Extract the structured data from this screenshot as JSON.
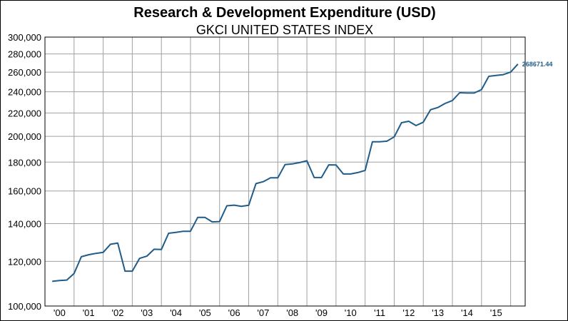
{
  "chart_data": {
    "type": "line",
    "title": "Research & Development Expenditure (USD)",
    "subtitle": "GKCI UNITED STATES INDEX",
    "y_scale": "log",
    "ylim": [
      100000,
      300000
    ],
    "y_ticks": [
      100000,
      120000,
      140000,
      160000,
      180000,
      200000,
      220000,
      240000,
      260000,
      280000,
      300000
    ],
    "y_tick_labels": [
      "100,000",
      "120,000",
      "140,000",
      "160,000",
      "180,000",
      "200,000",
      "220,000",
      "240,000",
      "260,000",
      "280,000",
      "300,000"
    ],
    "x_range": [
      1999.75,
      2016.25
    ],
    "x_ticks": [
      2000,
      2001,
      2002,
      2003,
      2004,
      2005,
      2006,
      2007,
      2008,
      2009,
      2010,
      2011,
      2012,
      2013,
      2014,
      2015
    ],
    "x_tick_labels": [
      "'00",
      "'01",
      "'02",
      "'03",
      "'04",
      "'05",
      "'06",
      "'07",
      "'08",
      "'09",
      "'10",
      "'11",
      "'12",
      "'13",
      "'14",
      "'15"
    ],
    "grid": true,
    "line_color": "#1f5c8a",
    "x": [
      2000.0,
      2000.25,
      2000.5,
      2000.75,
      2001.0,
      2001.25,
      2001.5,
      2001.75,
      2002.0,
      2002.25,
      2002.5,
      2002.75,
      2003.0,
      2003.25,
      2003.5,
      2003.75,
      2004.0,
      2004.25,
      2004.5,
      2004.75,
      2005.0,
      2005.25,
      2005.5,
      2005.75,
      2006.0,
      2006.25,
      2006.5,
      2006.75,
      2007.0,
      2007.25,
      2007.5,
      2007.75,
      2008.0,
      2008.25,
      2008.5,
      2008.75,
      2009.0,
      2009.25,
      2009.5,
      2009.75,
      2010.0,
      2010.25,
      2010.5,
      2010.75,
      2011.0,
      2011.25,
      2011.5,
      2011.75,
      2012.0,
      2012.25,
      2012.5,
      2012.75,
      2013.0,
      2013.25,
      2013.5,
      2013.75,
      2014.0,
      2014.25,
      2014.5,
      2014.75,
      2015.0,
      2015.25,
      2015.5,
      2015.75
    ],
    "values": [
      110600,
      111000,
      111200,
      114200,
      122300,
      123300,
      124000,
      124500,
      128700,
      129300,
      115300,
      115300,
      121500,
      122600,
      126100,
      126000,
      134600,
      135100,
      135700,
      135700,
      143600,
      143600,
      141000,
      141200,
      150600,
      151000,
      150300,
      150900,
      164900,
      166200,
      168800,
      168800,
      178200,
      178700,
      179700,
      181000,
      169000,
      169000,
      178000,
      177900,
      171500,
      171500,
      172500,
      174000,
      195600,
      195600,
      196100,
      199600,
      211500,
      212700,
      209000,
      211900,
      223000,
      225000,
      228800,
      231500,
      239000,
      238700,
      238700,
      242100,
      255600,
      256500,
      257400,
      260000
    ],
    "last_point": {
      "x": 2016.0,
      "value": 268671.44,
      "label": "268671.44"
    }
  }
}
